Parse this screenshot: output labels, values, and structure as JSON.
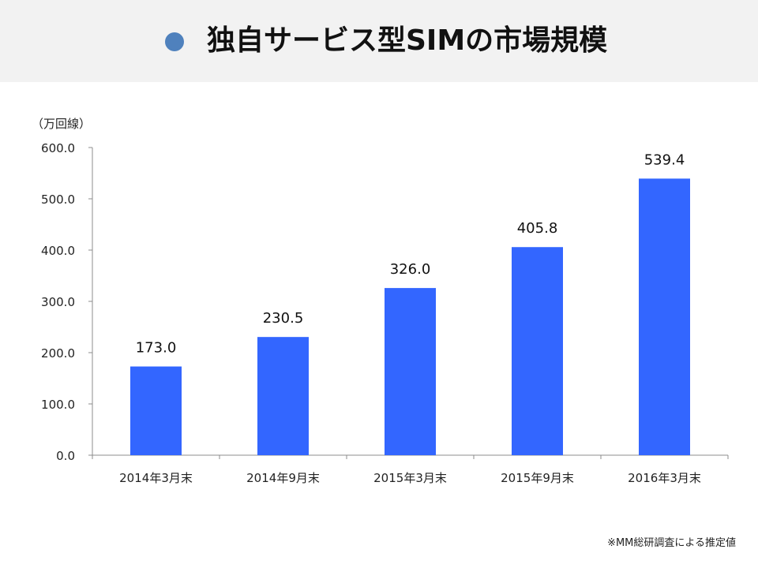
{
  "title": "独自サービス型SIMの市場規模",
  "unit_label": "（万回線）",
  "footnote": "※MM総研調査による推定値",
  "colors": {
    "bar": "#3366ff",
    "title_bullet": "#4f81bd",
    "title_band": "#f2f2f2"
  },
  "chart_data": {
    "type": "bar",
    "categories": [
      "2014年3月末",
      "2014年9月末",
      "2015年3月末",
      "2015年9月末",
      "2016年3月末"
    ],
    "values": [
      173.0,
      230.5,
      326.0,
      405.8,
      539.4
    ],
    "data_labels": [
      "173.0",
      "230.5",
      "326.0",
      "405.8",
      "539.4"
    ],
    "ylim": [
      0,
      600
    ],
    "yticks": [
      "0.0",
      "100.0",
      "200.0",
      "300.0",
      "400.0",
      "500.0",
      "600.0"
    ],
    "grid": false,
    "legend": "none"
  }
}
